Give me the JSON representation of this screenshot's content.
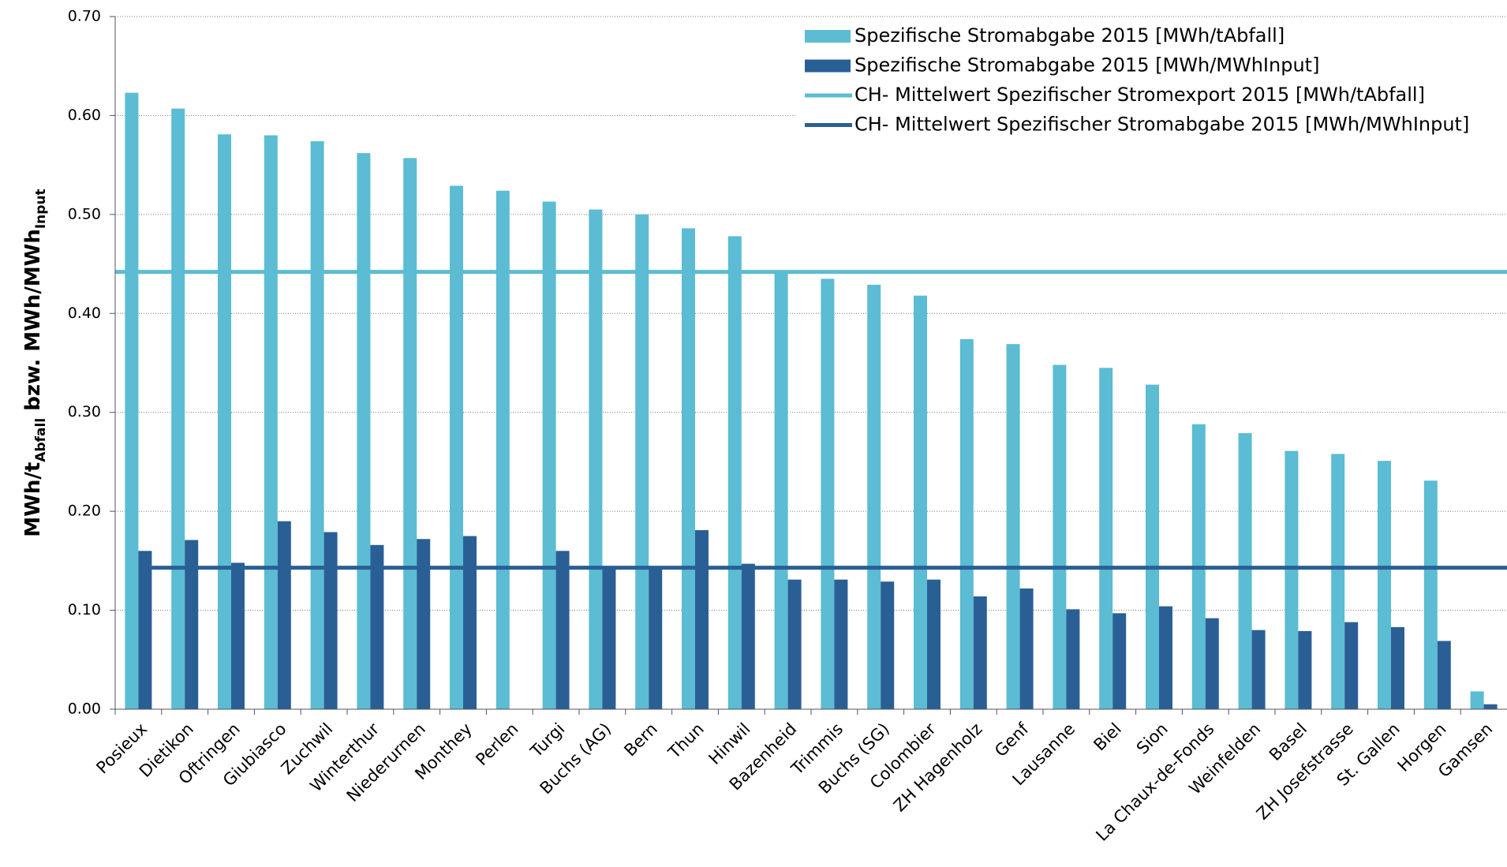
{
  "chart_data": {
    "type": "bar",
    "ylabel": [
      "MWh/t",
      "Abfall",
      " bzw. MWh/MWh",
      "Input"
    ],
    "categories": [
      "Posieux",
      "Dietikon",
      "Oftringen",
      "Giubiasco",
      "Zuchwil",
      "Winterthur",
      "Niederurnen",
      "Monthey",
      "Perlen",
      "Turgi",
      "Buchs (AG)",
      "Bern",
      "Thun",
      "Hinwil",
      "Bazenheid",
      "Trimmis",
      "Buchs (SG)",
      "Colombier",
      "ZH Hagenholz",
      "Genf",
      "Lausanne",
      "Biel",
      "Sion",
      "La Chaux-de-Fonds",
      "Weinfelden",
      "Basel",
      "ZH Josefstrasse",
      "St. Gallen",
      "Horgen",
      "Gamsen"
    ],
    "series": [
      {
        "name": "Spezifische Stromabgabe 2015 [MWh/tAbfall]",
        "color": "#5bbcd3",
        "values": [
          0.623,
          0.607,
          0.581,
          0.58,
          0.574,
          0.562,
          0.557,
          0.529,
          0.524,
          0.513,
          0.505,
          0.5,
          0.486,
          0.478,
          0.443,
          0.435,
          0.429,
          0.418,
          0.374,
          0.369,
          0.348,
          0.345,
          0.328,
          0.288,
          0.279,
          0.261,
          0.258,
          0.251,
          0.231,
          0.018
        ]
      },
      {
        "name": "Spezifische Stromabgabe 2015 [MWh/MWhInput]",
        "color": "#2a5f96",
        "values": [
          0.16,
          0.171,
          0.148,
          0.19,
          0.179,
          0.166,
          0.172,
          0.175,
          null,
          0.16,
          0.144,
          0.143,
          0.181,
          0.147,
          0.131,
          0.131,
          0.129,
          0.131,
          0.114,
          0.122,
          0.101,
          0.097,
          0.104,
          0.092,
          0.08,
          0.079,
          0.088,
          0.083,
          0.069,
          0.005
        ]
      }
    ],
    "reference_lines": [
      {
        "name": "CH- Mittelwert Spezifischer Stromexport 2015 [MWh/tAbfall]",
        "color": "#5bbcd3",
        "value": 0.442
      },
      {
        "name": "CH- Mittelwert Spezifischer Stromabgabe 2015 [MWh/MWhInput]",
        "color": "#2a5f96",
        "value": 0.143
      }
    ],
    "ylim": [
      0,
      0.7
    ],
    "yticks": [
      {
        "value": 0,
        "label": "0.00"
      },
      {
        "value": 0.1,
        "label": "0.10"
      },
      {
        "value": 0.2,
        "label": "0.20"
      },
      {
        "value": 0.3,
        "label": "0.30"
      },
      {
        "value": 0.4,
        "label": "0.40"
      },
      {
        "value": 0.5,
        "label": "0.50"
      },
      {
        "value": 0.6,
        "label": "0.60"
      },
      {
        "value": 0.7,
        "label": "0.70"
      }
    ],
    "grid": true,
    "legend": "top-right"
  }
}
